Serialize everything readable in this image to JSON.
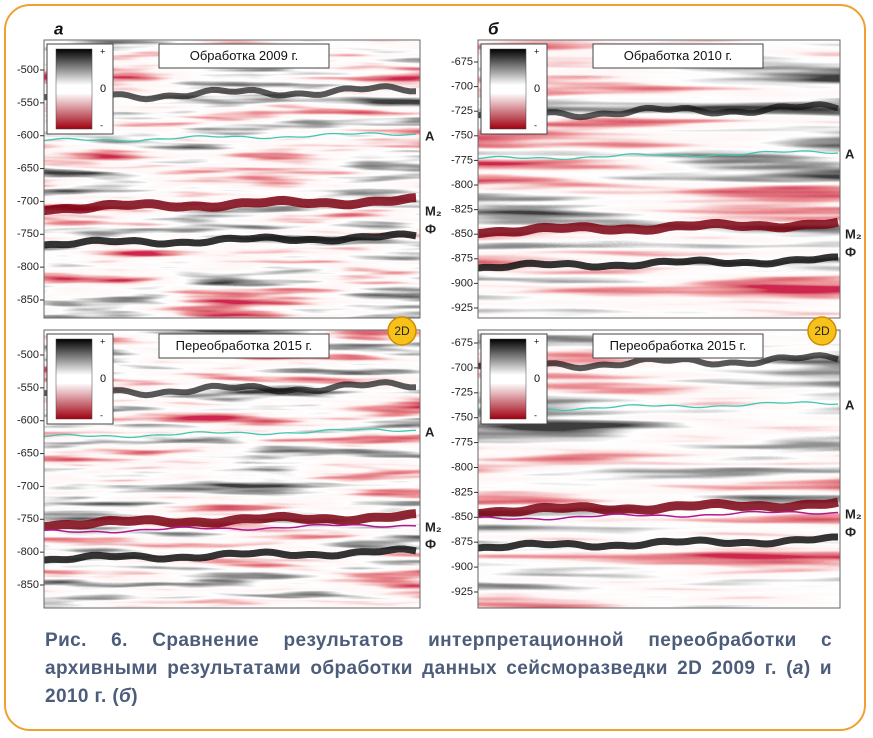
{
  "figure": {
    "panels": [
      {
        "letter": "а",
        "title": "Обработка 2009 г.",
        "legend": [
          "+",
          "0",
          "-"
        ],
        "yticks": [
          -500,
          -550,
          -600,
          -650,
          -700,
          -750,
          -800,
          -850
        ],
        "horizons": [
          "А",
          "M₂",
          "Ф"
        ]
      },
      {
        "title": "Переобработка 2015 г.",
        "badge": "2D",
        "legend": [
          "+",
          "0",
          "-"
        ],
        "yticks": [
          -500,
          -550,
          -600,
          -650,
          -700,
          -750,
          -800,
          -850
        ],
        "horizons": [
          "А",
          "M₂",
          "Ф"
        ]
      },
      {
        "letter": "б",
        "title": "Обработка 2010 г.",
        "legend": [
          "+",
          "0",
          "-"
        ],
        "yticks": [
          -675,
          -700,
          -725,
          -750,
          -775,
          -800,
          -825,
          -850,
          -875,
          -900,
          -925
        ],
        "horizons": [
          "А",
          "M₂",
          "Ф"
        ]
      },
      {
        "title": "Переобработка 2015 г.",
        "badge": "2D",
        "legend": [
          "+",
          "0",
          "-"
        ],
        "yticks": [
          -675,
          -700,
          -725,
          -750,
          -775,
          -800,
          -825,
          -850,
          -875,
          -900,
          -925
        ],
        "horizons": [
          "А",
          "M₂",
          "Ф"
        ]
      }
    ]
  },
  "caption": {
    "part_1": "Рис. 6. Сравнение результатов интерпретационной переобработки с архивными результатами обработки данных сейсморазведки 2D 2009 г. (",
    "letter_a": "а",
    "part_2": ") и 2010 г. (",
    "letter_b": "б",
    "part_3": ")"
  }
}
